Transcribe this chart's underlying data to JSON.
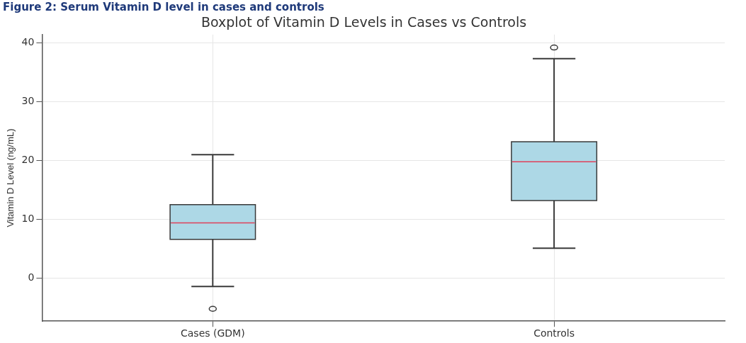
{
  "chart_data": {
    "type": "box",
    "title": "Figure 2: Serum Vitamin D level in cases and controls",
    "subtitle": "Boxplot of Vitamin D Levels in Cases vs Controls",
    "ylabel": "Vitamin D Level (ng/mL)",
    "categories": [
      "Cases (GDM)",
      "Controls"
    ],
    "color": "#add8e6",
    "boxes": [
      {
        "low": -1.4,
        "q1": 6.6,
        "median": 9.4,
        "q3": 12.5,
        "high": 21,
        "outliers": [
          -5.2
        ]
      },
      {
        "low": 5.1,
        "q1": 13.2,
        "median": 19.8,
        "q3": 23.2,
        "high": 37.3,
        "outliers": [
          39.2
        ]
      }
    ],
    "ylim": [
      -7.3,
      41.4
    ],
    "yticks": [
      0,
      10,
      20,
      30,
      40
    ],
    "grid": true
  }
}
